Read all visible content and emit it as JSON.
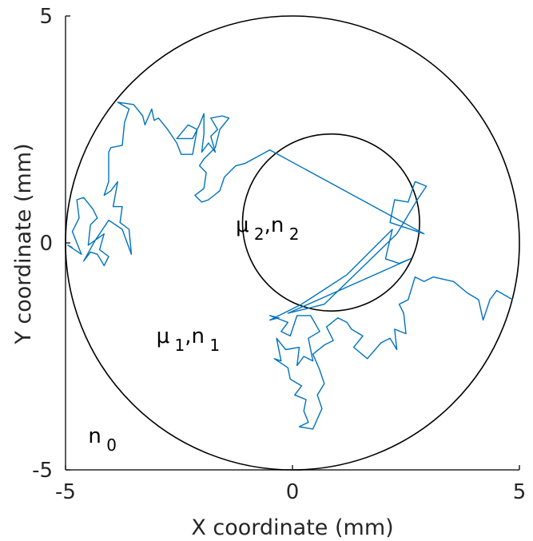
{
  "chart_data": {
    "type": "line",
    "title": "",
    "xlabel": "X coordinate (mm)",
    "ylabel": "Y coordinate (mm)",
    "xlim": [
      -5,
      5
    ],
    "ylim": [
      -5,
      5
    ],
    "x_ticks": [
      {
        "value": -5,
        "label": "-5"
      },
      {
        "value": 0,
        "label": "0"
      },
      {
        "value": 5,
        "label": "5"
      }
    ],
    "y_ticks": [
      {
        "value": -5,
        "label": "-5"
      },
      {
        "value": 0,
        "label": "0"
      },
      {
        "value": 5,
        "label": "5"
      }
    ],
    "grid": false,
    "box": false,
    "colors": {
      "path": "#0072bd",
      "circle": "#000000",
      "axis": "#262626"
    },
    "circles": [
      {
        "center": [
          0,
          0
        ],
        "radius": 5
      },
      {
        "center": [
          0.85,
          0.45
        ],
        "radius": 1.95
      }
    ],
    "annotations": [
      {
        "symbol": "μ",
        "main": "μ",
        "sub": "2",
        "sep": ",n",
        "sub2": "2",
        "at": [
          -1.25,
          0.25
        ]
      },
      {
        "symbol": "μ",
        "main": "μ",
        "sub": "1",
        "sep": ",n",
        "sub2": "1",
        "at": [
          -3.0,
          -2.2
        ]
      },
      {
        "main": "n",
        "sub": "0",
        "at": [
          -4.5,
          -4.4
        ]
      }
    ],
    "series": [
      {
        "points": [
          [
            -4.85,
            -0.1
          ],
          [
            -4.95,
            -0.05
          ],
          [
            -4.65,
            -0.25
          ],
          [
            -4.85,
            0.25
          ],
          [
            -4.7,
            0.55
          ],
          [
            -4.75,
            0.95
          ],
          [
            -4.6,
            1.0
          ],
          [
            -4.4,
            0.75
          ],
          [
            -4.3,
            0.55
          ],
          [
            -4.45,
            0.4
          ],
          [
            -4.5,
            -0.05
          ],
          [
            -4.15,
            0.2
          ],
          [
            -4.25,
            -0.15
          ],
          [
            -4.05,
            -0.3
          ],
          [
            -4.15,
            -0.5
          ],
          [
            -4.3,
            -0.25
          ],
          [
            -4.45,
            -0.2
          ],
          [
            -4.6,
            -0.4
          ],
          [
            -4.35,
            0.05
          ],
          [
            -4.05,
            0.5
          ],
          [
            -3.75,
            0.3
          ],
          [
            -3.55,
            -0.25
          ],
          [
            -3.6,
            0.3
          ],
          [
            -3.8,
            0.45
          ],
          [
            -3.75,
            0.8
          ],
          [
            -3.95,
            0.8
          ],
          [
            -3.85,
            1.35
          ],
          [
            -4.0,
            1.15
          ],
          [
            -4.15,
            1.05
          ],
          [
            -4.05,
            1.35
          ],
          [
            -4.05,
            2.0
          ],
          [
            -4.0,
            2.1
          ],
          [
            -3.75,
            2.15
          ],
          [
            -3.7,
            2.65
          ],
          [
            -3.6,
            2.95
          ],
          [
            -3.85,
            3.1
          ],
          [
            -3.5,
            3.05
          ],
          [
            -3.3,
            2.8
          ],
          [
            -3.25,
            2.6
          ],
          [
            -3.1,
            2.95
          ],
          [
            -3.05,
            2.7
          ],
          [
            -2.95,
            2.75
          ],
          [
            -2.75,
            2.5
          ],
          [
            -2.55,
            2.2
          ],
          [
            -2.45,
            1.95
          ],
          [
            -2.2,
            1.95
          ],
          [
            -2.1,
            2.5
          ],
          [
            -2.3,
            2.6
          ],
          [
            -2.55,
            2.3
          ],
          [
            -2.2,
            2.3
          ],
          [
            -2.05,
            2.6
          ],
          [
            -1.95,
            2.85
          ],
          [
            -1.95,
            2.4
          ],
          [
            -2.0,
            2.0
          ],
          [
            -1.85,
            2.2
          ],
          [
            -1.7,
            2.0
          ],
          [
            -1.8,
            2.35
          ],
          [
            -1.65,
            2.5
          ],
          [
            -1.8,
            2.75
          ],
          [
            -1.55,
            2.8
          ],
          [
            -1.4,
            2.75
          ],
          [
            -1.6,
            2.5
          ],
          [
            -1.7,
            2.1
          ],
          [
            -1.95,
            1.85
          ],
          [
            -2.05,
            1.7
          ],
          [
            -1.9,
            1.55
          ],
          [
            -1.95,
            1.2
          ],
          [
            -2.15,
            1.05
          ],
          [
            -2.0,
            0.9
          ],
          [
            -1.85,
            0.95
          ],
          [
            -1.6,
            1.15
          ],
          [
            -1.5,
            1.45
          ],
          [
            -1.25,
            1.7
          ],
          [
            -1.05,
            1.75
          ],
          [
            -0.5,
            2.05
          ],
          [
            2.9,
            0.2
          ],
          [
            2.15,
            0.45
          ],
          [
            2.25,
            0.95
          ],
          [
            2.55,
            0.9
          ],
          [
            2.7,
            1.35
          ],
          [
            2.95,
            1.25
          ],
          [
            2.75,
            0.95
          ],
          [
            2.3,
            0.2
          ],
          [
            0.7,
            -1.35
          ],
          [
            0.3,
            -1.45
          ],
          [
            -0.1,
            -1.55
          ],
          [
            2.6,
            -0.35
          ],
          [
            2.35,
            -0.45
          ],
          [
            2.05,
            -0.35
          ],
          [
            2.2,
            0.3
          ],
          [
            1.2,
            -0.7
          ],
          [
            0.2,
            -1.35
          ],
          [
            -0.5,
            -1.7
          ],
          [
            -0.3,
            -1.65
          ],
          [
            -0.5,
            -1.6
          ],
          [
            -0.1,
            -1.75
          ],
          [
            -0.25,
            -1.95
          ],
          [
            -0.05,
            -2.05
          ],
          [
            0.1,
            -1.6
          ],
          [
            0.4,
            -1.6
          ],
          [
            0.6,
            -1.95
          ],
          [
            0.35,
            -2.1
          ],
          [
            0.45,
            -2.6
          ],
          [
            0.25,
            -2.5
          ],
          [
            0.1,
            -2.7
          ],
          [
            0.15,
            -2.3
          ],
          [
            -0.15,
            -2.35
          ],
          [
            -0.35,
            -2.1
          ],
          [
            -0.25,
            -2.6
          ],
          [
            -0.4,
            -2.55
          ],
          [
            -0.1,
            -2.75
          ],
          [
            -0.05,
            -3.0
          ],
          [
            0.2,
            -3.15
          ],
          [
            0.05,
            -3.35
          ],
          [
            0.3,
            -3.45
          ],
          [
            0.25,
            -3.7
          ],
          [
            0.35,
            -3.95
          ],
          [
            0.15,
            -4.05
          ],
          [
            0.45,
            -4.1
          ],
          [
            0.65,
            -3.65
          ],
          [
            0.55,
            -3.35
          ],
          [
            0.7,
            -3.1
          ],
          [
            0.6,
            -2.8
          ],
          [
            0.45,
            -2.45
          ],
          [
            0.7,
            -2.25
          ],
          [
            0.9,
            -2.15
          ],
          [
            0.75,
            -1.85
          ],
          [
            1.0,
            -1.65
          ],
          [
            1.2,
            -1.75
          ],
          [
            1.3,
            -1.9
          ],
          [
            1.55,
            -2.05
          ],
          [
            1.35,
            -2.3
          ],
          [
            1.65,
            -2.55
          ],
          [
            1.95,
            -2.2
          ],
          [
            2.15,
            -2.1
          ],
          [
            2.3,
            -2.35
          ],
          [
            2.25,
            -1.9
          ],
          [
            2.5,
            -2.0
          ],
          [
            2.45,
            -1.55
          ],
          [
            2.35,
            -1.35
          ],
          [
            2.55,
            -1.25
          ],
          [
            2.7,
            -0.75
          ],
          [
            2.9,
            -0.85
          ],
          [
            3.1,
            -0.75
          ],
          [
            3.55,
            -0.85
          ],
          [
            3.85,
            -1.1
          ],
          [
            4.1,
            -1.25
          ],
          [
            4.2,
            -1.7
          ],
          [
            4.35,
            -1.25
          ],
          [
            4.5,
            -1.05
          ],
          [
            4.85,
            -1.25
          ]
        ]
      }
    ]
  }
}
